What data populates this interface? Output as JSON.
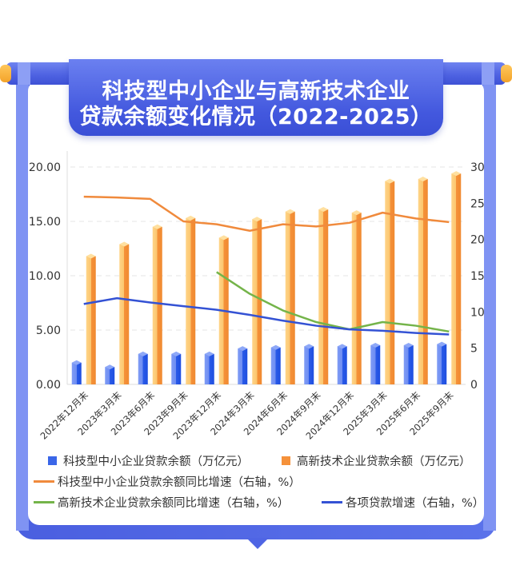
{
  "title": {
    "line1": "科技型中小企业与高新技术企业",
    "line2": "贷款余额变化情况（2022-2025）"
  },
  "colors": {
    "frame": "#4a5fe0",
    "sme_bar": "#3a66e8",
    "hightech_bar": "#f5913a",
    "sme_growth_line": "#f08a3c",
    "hightech_growth_line": "#74b44a",
    "total_loan_growth_line": "#3452d4",
    "accent_cap": "#f3a32a"
  },
  "legend": {
    "items": [
      {
        "label": "科技型中小企业贷款余额（万亿元）",
        "type": "box",
        "color": "#3a66e8"
      },
      {
        "label": "高新技术企业贷款余额（万亿元）",
        "type": "box",
        "color": "#f5913a"
      },
      {
        "label": "科技型中小企业贷款余额同比增速（右轴，%）",
        "type": "line",
        "color": "#f08a3c"
      },
      {
        "label": "高新技术企业贷款余额同比增速（右轴，%）",
        "type": "line",
        "color": "#74b44a"
      },
      {
        "label": "各项贷款增速（右轴，%）",
        "type": "line",
        "color": "#3452d4"
      }
    ]
  },
  "chart_data": {
    "type": "bar",
    "title": "科技型中小企业与高新技术企业贷款余额变化情况（2022-2025）",
    "categories": [
      "2022年12月末",
      "2023年3月末",
      "2023年6月末",
      "2023年9月末",
      "2023年12月末",
      "2024年3月末",
      "2024年6月末",
      "2024年9月末",
      "2024年12月末",
      "2025年3月末",
      "2025年6月末",
      "2025年9月末"
    ],
    "left_axis": {
      "ticks": [
        "0.00",
        "5.00",
        "10.00",
        "15.00",
        "20.00"
      ],
      "min": 0,
      "max": 20,
      "label": "万亿元"
    },
    "right_axis": {
      "ticks": [
        "0",
        "5",
        "10",
        "15",
        "20",
        "25",
        "30"
      ],
      "min": 0,
      "max": 30,
      "label": "%"
    },
    "grid": "horizontal dashed",
    "legend_position": "bottom",
    "series": [
      {
        "name": "科技型中小企业贷款余额（万亿元）",
        "type": "bar",
        "axis": "left",
        "values": [
          2.0,
          1.6,
          2.8,
          2.8,
          2.8,
          3.3,
          3.4,
          3.5,
          3.5,
          3.6,
          3.6,
          3.7
        ]
      },
      {
        "name": "高新技术企业贷款余额（万亿元）",
        "type": "bar",
        "axis": "left",
        "values": [
          11.8,
          12.9,
          14.5,
          15.3,
          13.5,
          15.2,
          15.9,
          16.1,
          15.8,
          18.7,
          18.9,
          19.4
        ]
      },
      {
        "name": "科技型中小企业贷款余额同比增速（右轴，%）",
        "type": "line",
        "axis": "right",
        "values": [
          25.9,
          25.8,
          25.6,
          22.5,
          22.1,
          21.2,
          22.1,
          21.8,
          22.3,
          23.7,
          22.9,
          22.4
        ]
      },
      {
        "name": "高新技术企业贷款余额同比增速（右轴，%）",
        "type": "line",
        "axis": "right",
        "values": [
          null,
          null,
          null,
          null,
          15.5,
          12.5,
          10.2,
          8.6,
          7.6,
          8.6,
          8.1,
          7.3
        ]
      },
      {
        "name": "各项贷款增速（右轴，%）",
        "type": "line",
        "axis": "right",
        "values": [
          11.1,
          11.9,
          11.3,
          10.8,
          10.3,
          9.6,
          8.8,
          8.1,
          7.6,
          7.4,
          7.1,
          6.9
        ]
      }
    ]
  }
}
